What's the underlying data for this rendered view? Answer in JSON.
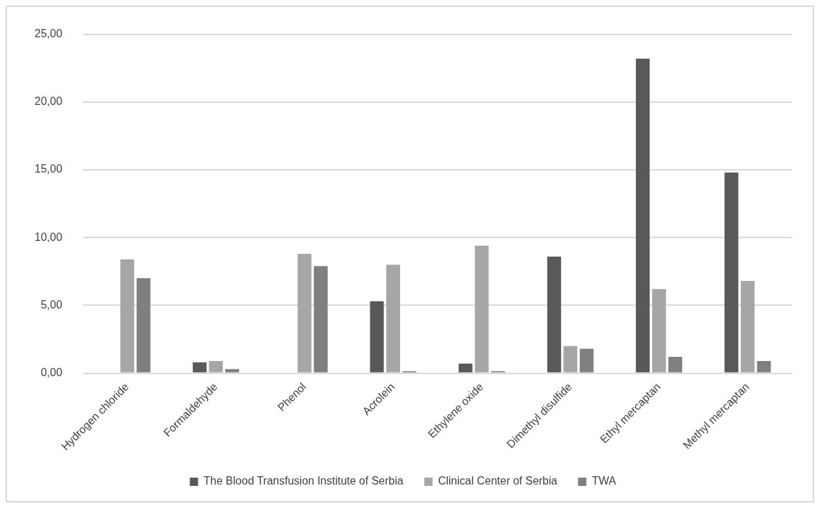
{
  "chart_data": {
    "type": "bar",
    "categories": [
      "Hydrogen chloride",
      "Formaldehyde",
      "Phenol",
      "Acrolein",
      "Ethylene oxide",
      "Dimethyl disulfide",
      "Ethyl mercaptan",
      "Methyl mercaptan"
    ],
    "series": [
      {
        "name": "The Blood Transfusion Institute of Serbia",
        "color": "#595959",
        "values": [
          null,
          0.8,
          null,
          5.3,
          0.7,
          8.6,
          23.2,
          14.8
        ]
      },
      {
        "name": "Clinical Center of Serbia",
        "color": "#a6a6a6",
        "values": [
          8.4,
          0.9,
          8.8,
          8.0,
          9.4,
          2.0,
          6.2,
          6.8
        ]
      },
      {
        "name": "TWA",
        "color": "#7f7f7f",
        "values": [
          7.0,
          0.3,
          7.9,
          0.15,
          0.15,
          1.8,
          1.2,
          0.9
        ]
      }
    ],
    "ylim": [
      0,
      25
    ],
    "yticks": [
      {
        "value": 0,
        "label": "0,00"
      },
      {
        "value": 5,
        "label": "5,00"
      },
      {
        "value": 10,
        "label": "10,00"
      },
      {
        "value": 15,
        "label": "15,00"
      },
      {
        "value": 20,
        "label": "20,00"
      },
      {
        "value": 25,
        "label": "25,00"
      }
    ],
    "grid": "y",
    "legend": "bottom"
  }
}
